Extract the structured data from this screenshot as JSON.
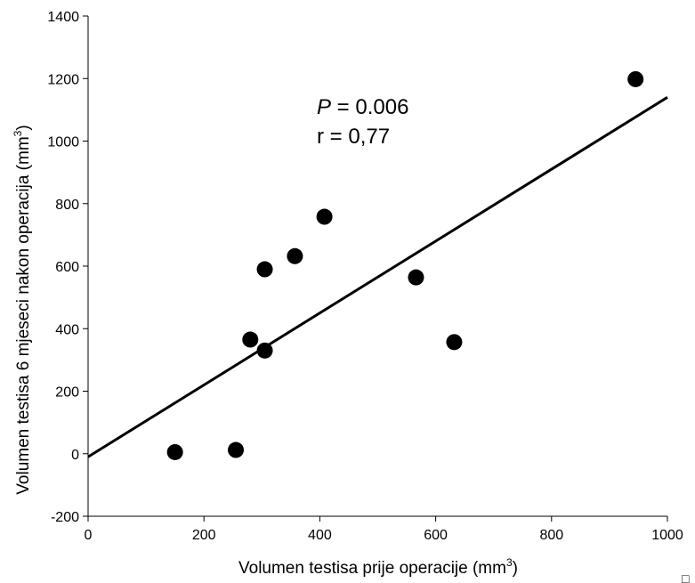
{
  "chart_data": {
    "type": "scatter",
    "xlabel": "Volumen testisa prije operacije (mm",
    "xlabel_sup": "3",
    "xlabel_close": ")",
    "ylabel": "Volumen testisa 6 mjeseci nakon operacija (mm",
    "ylabel_sup": "3",
    "ylabel_close": ")",
    "xlim": [
      0,
      1000
    ],
    "ylim": [
      -200,
      1400
    ],
    "x_ticks": [
      0,
      200,
      400,
      600,
      800,
      1000
    ],
    "y_ticks": [
      -200,
      0,
      200,
      400,
      600,
      800,
      1000,
      1200,
      1400
    ],
    "grid": false,
    "points": [
      {
        "x": 150,
        "y": 5
      },
      {
        "x": 255,
        "y": 12
      },
      {
        "x": 280,
        "y": 365
      },
      {
        "x": 305,
        "y": 590
      },
      {
        "x": 305,
        "y": 330
      },
      {
        "x": 357,
        "y": 632
      },
      {
        "x": 408,
        "y": 758
      },
      {
        "x": 566,
        "y": 564
      },
      {
        "x": 632,
        "y": 357
      },
      {
        "x": 945,
        "y": 1198
      }
    ],
    "fit_line": {
      "x0": 0,
      "y0": -10,
      "x1": 1000,
      "y1": 1140
    },
    "annotations": {
      "p_symbol": "P",
      "p_rest": " = 0.006",
      "r_text": "r = 0,77"
    },
    "corner_glyph": "□"
  }
}
